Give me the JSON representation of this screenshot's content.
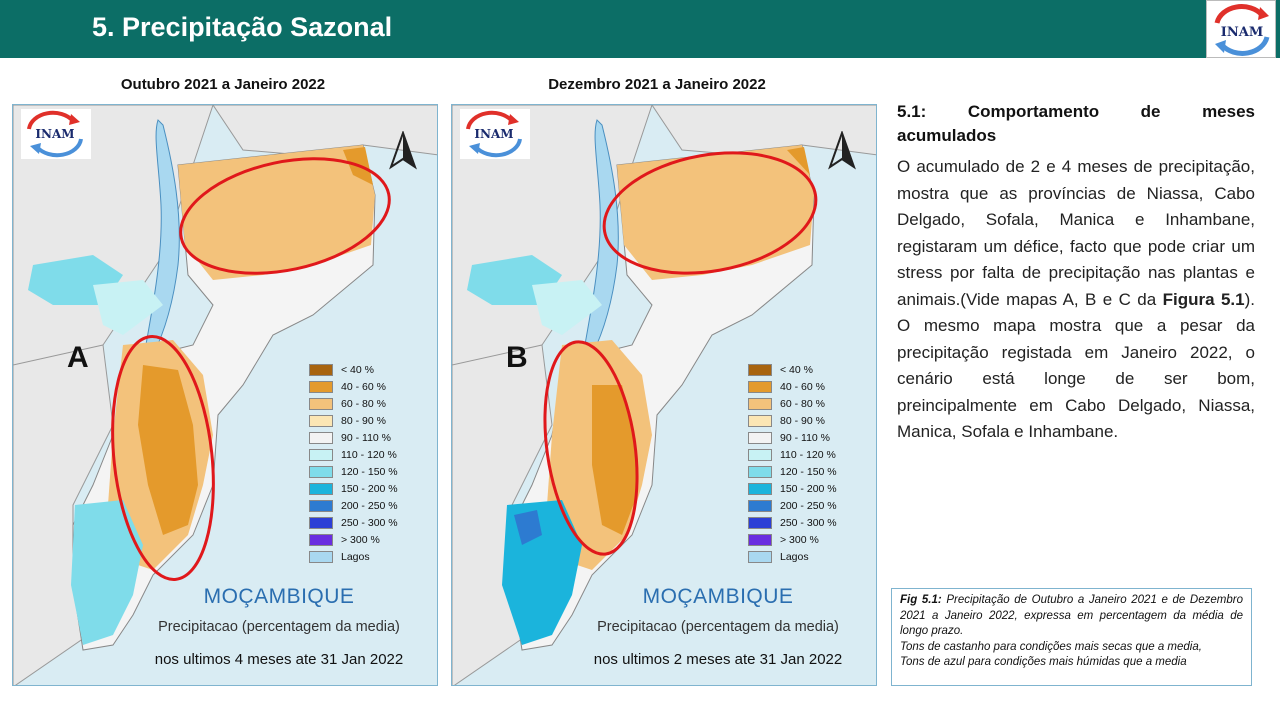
{
  "header": {
    "title": "5. Precipitação Sazonal",
    "logo_text": "INAM",
    "color": "#0c6e66"
  },
  "maps": [
    {
      "title": "Outubro 2021 a Janeiro 2022",
      "letter": "A",
      "country": "MOÇAMBIQUE",
      "subtitle": "Precipitacao (percentagem da media)",
      "period": "nos ultimos 4 meses ate 31 Jan 2022"
    },
    {
      "title": "Dezembro 2021 a Janeiro 2022",
      "letter": "B",
      "country": "MOÇAMBIQUE",
      "subtitle": "Precipitacao (percentagem da media)",
      "period": "nos ultimos 2 meses ate 31 Jan 2022"
    }
  ],
  "logo_text": "INAM",
  "legend": [
    {
      "label": "< 40 %",
      "color": "#a8640f"
    },
    {
      "label": "40 - 60 %",
      "color": "#e49a2c"
    },
    {
      "label": "60 - 80 %",
      "color": "#f3c27b"
    },
    {
      "label": "80 - 90 %",
      "color": "#fbe6b4"
    },
    {
      "label": "90 - 110 %",
      "color": "#f3f3f3"
    },
    {
      "label": "110 - 120 %",
      "color": "#c8f2f4"
    },
    {
      "label": "120 - 150 %",
      "color": "#7fdcea"
    },
    {
      "label": "150 - 200 %",
      "color": "#1bb4dc"
    },
    {
      "label": "200 - 250 %",
      "color": "#2d7bd1"
    },
    {
      "label": "250 - 300 %",
      "color": "#2c3fd6"
    },
    {
      "label": "> 300 %",
      "color": "#6a2ee0"
    },
    {
      "label": "Lagos",
      "color": "#a9d8f0"
    }
  ],
  "section": {
    "heading_num": "5.1:",
    "heading_words": [
      "Comportamento",
      "de",
      "meses"
    ],
    "heading_last": "acumulados",
    "body_pre": "O acumulado de 2 e 4 meses de precipitação, mostra que as províncias de Niassa, Cabo Delgado, Sofala, Manica e Inhambane, registaram um défice, facto que pode criar um stress por falta de precipitação nas plantas e animais.(Vide mapas A, B e C da ",
    "body_bold": "Figura 5.1",
    "body_post": "). O mesmo mapa mostra que a pesar da precipitação registada em Janeiro 2022, o cenário está longe de ser bom, preincipalmente em Cabo Delgado, Niassa, Manica, Sofala e Inhambane."
  },
  "caption": {
    "label": "Fig 5.1:",
    "text": " Precipitação de Outubro a Janeiro 2021 e de Dezembro 2021 a Janeiro 2022, expressa em percentagem da média de longo prazo.",
    "line2": "Tons de castanho para condições mais secas que a media,",
    "line3": "Tons de azul para condições mais húmidas que a media"
  }
}
